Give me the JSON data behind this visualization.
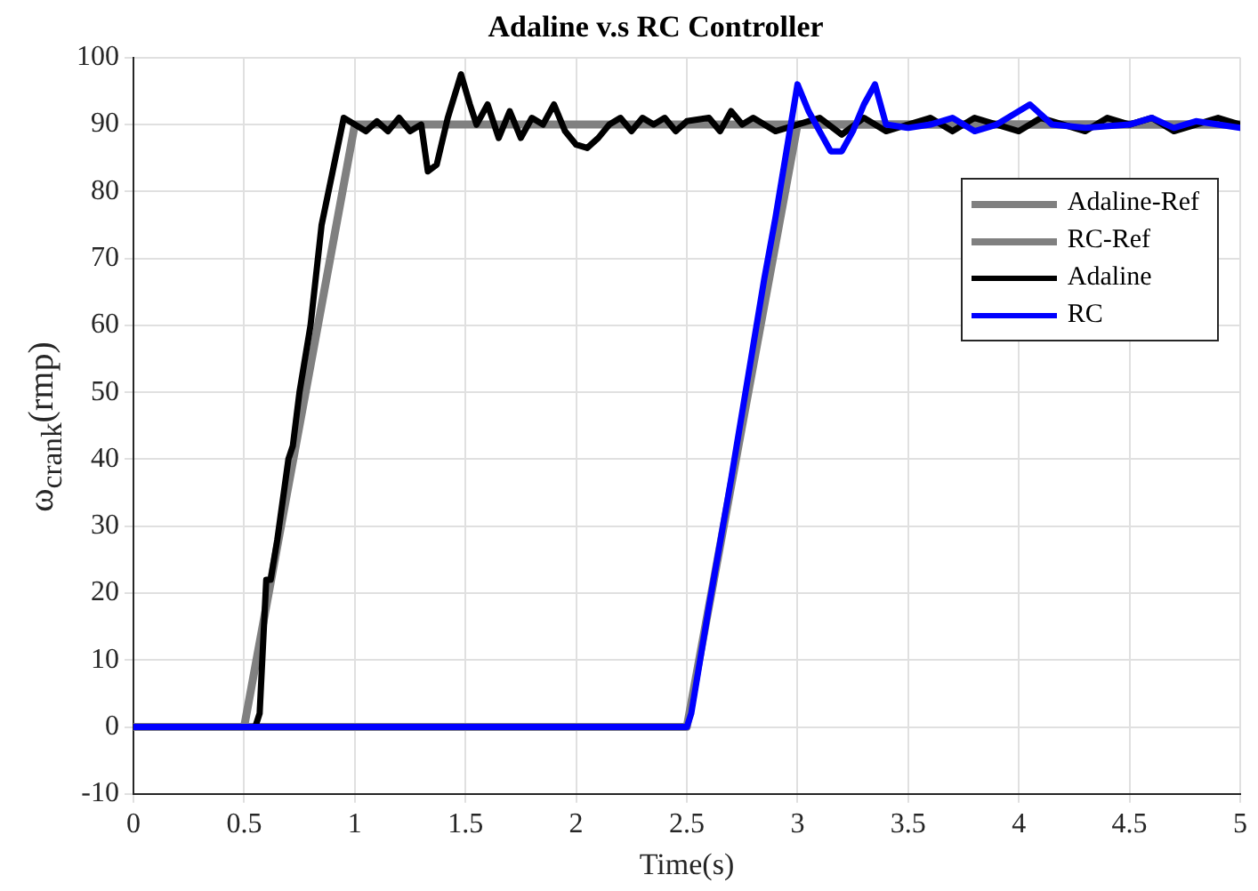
{
  "chart_data": {
    "type": "line",
    "title": "Adaline v.s RC Controller",
    "xlabel": "Time(s)",
    "ylabel": "ω$_{crank}$(rmp)",
    "xlim": [
      0,
      5
    ],
    "xticks": [
      0,
      0.5,
      1,
      1.5,
      2,
      2.5,
      3,
      3.5,
      4,
      4.5,
      5
    ],
    "ylim": [
      -10,
      100
    ],
    "yticks": [
      -10,
      0,
      10,
      20,
      30,
      40,
      50,
      60,
      70,
      80,
      90,
      100
    ],
    "grid": true,
    "legend": "top right",
    "marker": "none",
    "line_style": "solid",
    "series": [
      {
        "name": "Adaline-Ref",
        "color": "#808080",
        "x": [
          0,
          0.5,
          1,
          5
        ],
        "values": [
          0,
          0,
          90,
          90
        ]
      },
      {
        "name": "RC-Ref",
        "color": "#808080",
        "x": [
          0,
          2.5,
          3,
          5
        ],
        "values": [
          0,
          0,
          90,
          90
        ]
      },
      {
        "name": "Adaline",
        "color": "#000000",
        "x": [
          0,
          0.55,
          0.57,
          0.6,
          0.62,
          0.65,
          0.7,
          0.72,
          0.75,
          0.8,
          0.85,
          0.9,
          0.95,
          1,
          1.05,
          1.1,
          1.15,
          1.2,
          1.25,
          1.3,
          1.33,
          1.37,
          1.42,
          1.48,
          1.52,
          1.55,
          1.6,
          1.65,
          1.7,
          1.75,
          1.8,
          1.85,
          1.9,
          1.95,
          2,
          2.05,
          2.1,
          2.15,
          2.2,
          2.25,
          2.3,
          2.35,
          2.4,
          2.45,
          2.5,
          2.6,
          2.65,
          2.7,
          2.75,
          2.8,
          2.9,
          3,
          3.1,
          3.2,
          3.3,
          3.4,
          3.5,
          3.6,
          3.7,
          3.8,
          3.9,
          4,
          4.1,
          4.2,
          4.3,
          4.4,
          4.5,
          4.6,
          4.7,
          4.8,
          4.9,
          5
        ],
        "values": [
          0,
          0,
          2,
          22,
          22,
          28,
          40,
          42,
          50,
          60,
          75,
          83,
          91,
          90,
          89,
          90.5,
          89,
          91,
          89,
          90,
          83,
          84,
          91,
          97.5,
          93,
          90,
          93,
          88,
          92,
          88,
          91,
          90,
          93,
          89,
          87,
          86.5,
          88,
          90,
          91,
          89,
          91,
          90,
          91,
          89,
          90.5,
          91,
          89,
          92,
          90,
          91,
          89,
          90,
          91,
          88.5,
          91,
          89,
          90,
          91,
          89,
          91,
          90,
          89,
          91,
          90,
          89,
          91,
          90,
          91,
          89,
          90,
          91,
          90
        ]
      },
      {
        "name": "RC",
        "color": "#0000ff",
        "x": [
          0,
          2.5,
          2.52,
          2.6,
          2.7,
          2.75,
          2.8,
          2.85,
          2.9,
          2.95,
          3,
          3.05,
          3.1,
          3.15,
          3.2,
          3.25,
          3.3,
          3.35,
          3.4,
          3.5,
          3.6,
          3.7,
          3.8,
          3.9,
          3.95,
          4.05,
          4.15,
          4.3,
          4.5,
          4.6,
          4.7,
          4.8,
          4.9,
          5
        ],
        "values": [
          0,
          0,
          2,
          18,
          37,
          47,
          57,
          67,
          76,
          86,
          96,
          92,
          89,
          86,
          86,
          89,
          93,
          96,
          90,
          89.5,
          90,
          91,
          89,
          90,
          91,
          93,
          90,
          89.5,
          90,
          91,
          89.5,
          90.5,
          90,
          89.5
        ]
      }
    ]
  }
}
